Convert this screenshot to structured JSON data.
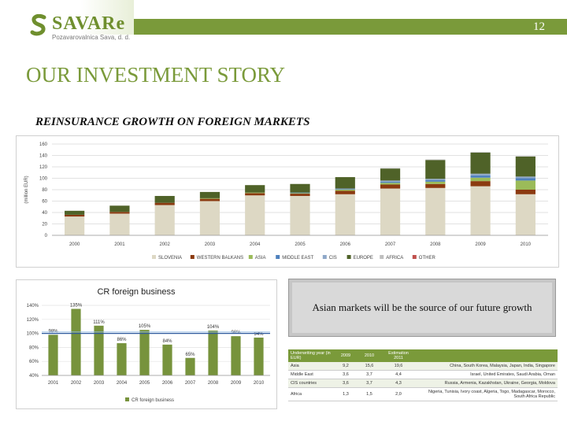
{
  "header": {
    "logo_name": "SAVARe",
    "logo_sub": "Pozavarovalnica Sava, d. d.",
    "page_number": "12",
    "bar_color": "#7a9a3a"
  },
  "title": "OUR INVESTMENT STORY",
  "subtitle": "REINSURANCE GROWTH ON FOREIGN MARKETS",
  "chart_data": [
    {
      "type": "bar",
      "stacked": true,
      "title": "",
      "ylabel": "(million EUR)",
      "xlabel": "",
      "ylim": [
        0,
        160
      ],
      "yticks": [
        0,
        20,
        40,
        60,
        80,
        100,
        120,
        140,
        160
      ],
      "grid": true,
      "legend": "bottom",
      "categories": [
        "2000",
        "2001",
        "2002",
        "2003",
        "2004",
        "2005",
        "2006",
        "2007",
        "2008",
        "2009",
        "2010"
      ],
      "series": [
        {
          "name": "SLOVENIA",
          "color": "#ddd8c4",
          "values": [
            33,
            38,
            53,
            60,
            70,
            69,
            72,
            82,
            83,
            86,
            72
          ]
        },
        {
          "name": "WESTERN BALKANS",
          "color": "#8b3a10",
          "values": [
            3,
            3,
            4,
            4,
            4,
            4,
            6,
            7,
            7,
            9,
            8
          ]
        },
        {
          "name": "ASIA",
          "color": "#9bbb59",
          "values": [
            0,
            0,
            0,
            1,
            1,
            1,
            2,
            3,
            4,
            6,
            16
          ]
        },
        {
          "name": "MIDDLE EAST",
          "color": "#4f81bd",
          "values": [
            0,
            0,
            0,
            0,
            0,
            1,
            1,
            2,
            3,
            4,
            4
          ]
        },
        {
          "name": "CIS",
          "color": "#8fa8c8",
          "values": [
            0,
            0,
            0,
            0,
            0,
            0,
            1,
            2,
            2,
            3,
            3
          ]
        },
        {
          "name": "EUROPE",
          "color": "#4f6228",
          "values": [
            7,
            11,
            12,
            11,
            13,
            15,
            20,
            21,
            33,
            37,
            35
          ]
        },
        {
          "name": "AFRICA",
          "color": "#bfbfbf",
          "values": [
            0,
            0,
            0,
            0,
            0,
            0,
            0,
            1,
            1,
            1,
            1
          ]
        },
        {
          "name": "OTHER",
          "color": "#c0504d",
          "values": [
            0,
            0,
            0,
            0,
            0,
            0,
            0,
            0,
            0,
            0,
            0
          ]
        }
      ]
    },
    {
      "type": "bar",
      "title": "CR foreign business",
      "xlabel": "",
      "ylabel": "",
      "ylim": [
        40,
        140
      ],
      "yticks": [
        "40%",
        "60%",
        "80%",
        "100%",
        "120%",
        "140%"
      ],
      "legend": "bottom",
      "categories": [
        "2001",
        "2002",
        "2003",
        "2004",
        "2005",
        "2006",
        "2007",
        "2008",
        "2009",
        "2010"
      ],
      "series": [
        {
          "name": "CR foreign business",
          "color": "#77933c",
          "values": [
            98,
            135,
            111,
            86,
            105,
            84,
            65,
            104,
            96,
            94
          ]
        }
      ],
      "data_labels": [
        "98%",
        "135%",
        "111%",
        "86%",
        "105%",
        "84%",
        "65%",
        "104%",
        "96%",
        "94%"
      ],
      "reference_line": 100
    }
  ],
  "callout": "Asian markets will be the source of our future growth",
  "uw_table": {
    "headers": [
      "Underwriting year (in EUR)",
      "2009",
      "2010",
      "Estimation 2011",
      ""
    ],
    "rows": [
      {
        "region": "Asia",
        "y2009": "9,2",
        "y2010": "15,6",
        "est": "19,6",
        "countries": "China, South Korea, Malaysia, Japan, India, Singapore"
      },
      {
        "region": "Middle East",
        "y2009": "3,6",
        "y2010": "3,7",
        "est": "4,4",
        "countries": "Israel, United Emirates, Saudi Arabia, Oman"
      },
      {
        "region": "CIS countries",
        "y2009": "3,6",
        "y2010": "3,7",
        "est": "4,3",
        "countries": "Russia, Armenia, Kazakhstan, Ukraine, Georgia, Moldova"
      },
      {
        "region": "Africa",
        "y2009": "1,3",
        "y2010": "1,5",
        "est": "2,0",
        "countries": "Nigeria, Tunisia, Ivory coast, Algeria, Togo, Madagascar, Morocco, South Africa Republic"
      }
    ]
  }
}
